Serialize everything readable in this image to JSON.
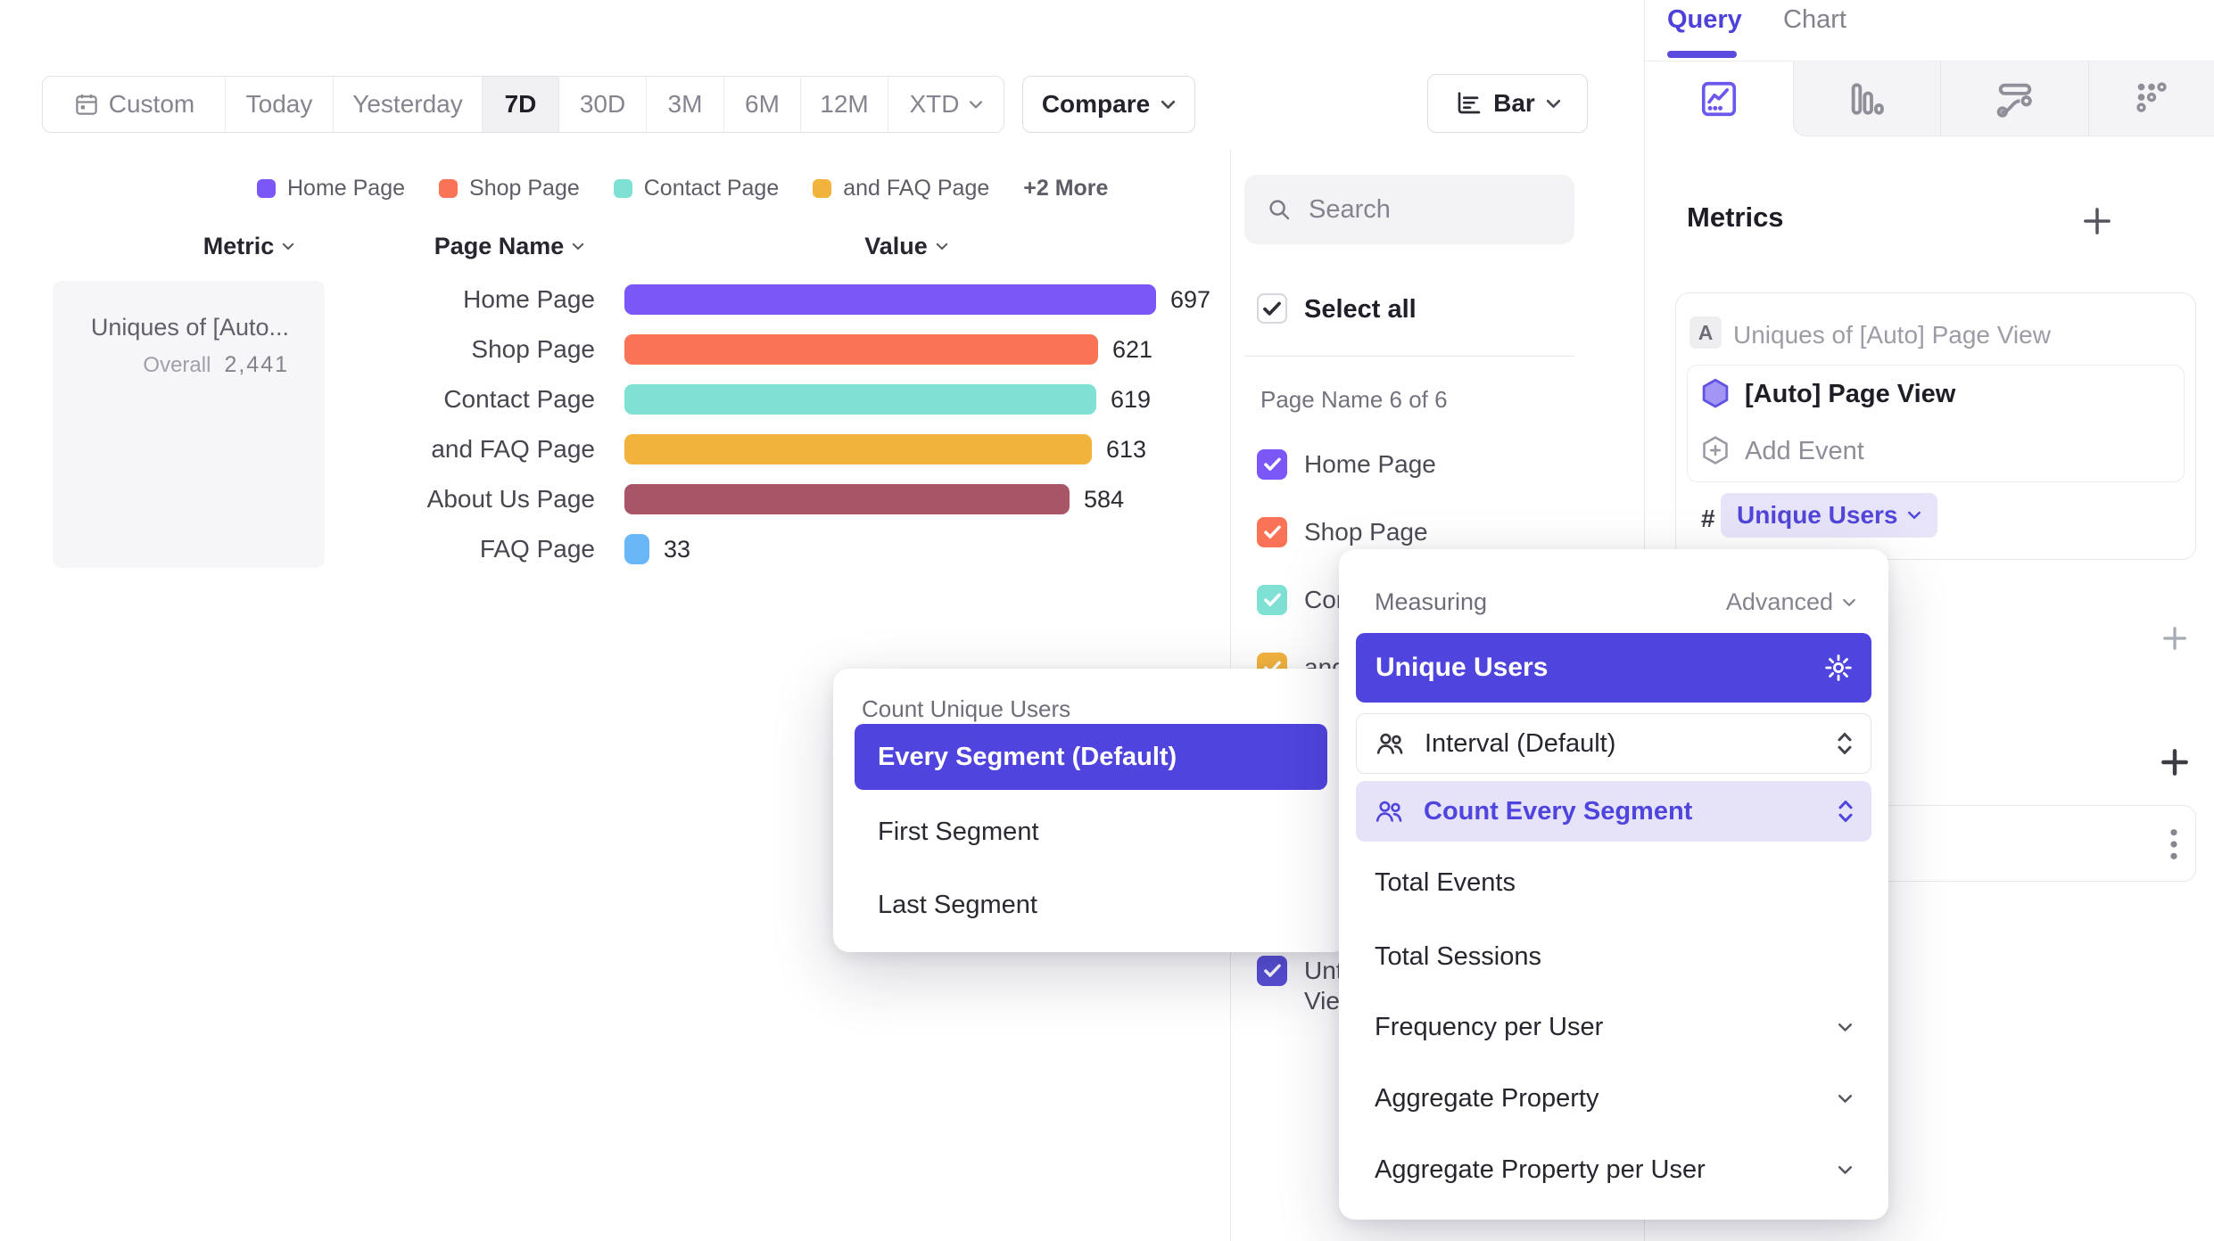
{
  "colors": {
    "accent": "#4f44dd",
    "accent_soft": "#e7e4fa",
    "tab_purple": "#4d41da",
    "bar_purple": "#7b57f7",
    "bar_coral": "#fb7357",
    "bar_teal": "#7fe0d4",
    "bar_yellow": "#f2b33d",
    "bar_maroon": "#a85568",
    "bar_blue": "#69b7f7",
    "indigo_check": "#574fd8"
  },
  "toolbar": {
    "date_ranges": [
      {
        "label": "Custom"
      },
      {
        "label": "Today"
      },
      {
        "label": "Yesterday"
      },
      {
        "label": "7D"
      },
      {
        "label": "30D"
      },
      {
        "label": "3M"
      },
      {
        "label": "6M"
      },
      {
        "label": "12M"
      },
      {
        "label": "XTD"
      }
    ],
    "active_range": "7D",
    "compare_label": "Compare",
    "chart_type_label": "Bar"
  },
  "legend": {
    "items": [
      {
        "label": "Home Page",
        "color": "#7b57f7"
      },
      {
        "label": "Shop Page",
        "color": "#fb7357"
      },
      {
        "label": "Contact Page",
        "color": "#7fe0d4"
      },
      {
        "label": "and FAQ Page",
        "color": "#f2b33d"
      }
    ],
    "more_label": "+2 More"
  },
  "table": {
    "headers": {
      "metric": "Metric",
      "page_name": "Page Name",
      "value": "Value"
    },
    "metric_cell": {
      "title": "Uniques of [Auto...",
      "overall_label": "Overall",
      "overall_value": "2,441"
    },
    "rows": [
      {
        "label": "Home Page",
        "value": 697,
        "color": "#7b57f7"
      },
      {
        "label": "Shop Page",
        "value": 621,
        "color": "#fb7357"
      },
      {
        "label": "Contact Page",
        "value": 619,
        "color": "#7fe0d4"
      },
      {
        "label": "and FAQ Page",
        "value": 613,
        "color": "#f2b33d"
      },
      {
        "label": "About Us Page",
        "value": 584,
        "color": "#a85568"
      },
      {
        "label": "FAQ Page",
        "value": 33,
        "color": "#69b7f7"
      }
    ]
  },
  "chart_data": {
    "type": "bar",
    "orientation": "horizontal",
    "title": "Uniques of [Auto] Page View",
    "overall_total": "2,441",
    "categories": [
      "Home Page",
      "Shop Page",
      "Contact Page",
      "and FAQ Page",
      "About Us Page",
      "FAQ Page"
    ],
    "values": [
      697,
      621,
      619,
      613,
      584,
      33
    ],
    "colors": [
      "#7b57f7",
      "#fb7357",
      "#7fe0d4",
      "#f2b33d",
      "#a85568",
      "#69b7f7"
    ],
    "xlim": [
      0,
      697
    ],
    "value_labels": true,
    "grid": false,
    "legend_position": "top"
  },
  "segment_panel": {
    "search_placeholder": "Search",
    "select_all_label": "Select all",
    "group_label": "Page Name 6 of 6",
    "items": [
      {
        "label": "Home Page",
        "color": "#7b57f7",
        "checked": true
      },
      {
        "label": "Shop Page",
        "color": "#fb7357",
        "checked": true
      },
      {
        "label": "Contact Page",
        "color": "#7fe0d4",
        "checked": true
      },
      {
        "label": "and FAQ Page",
        "color": "#f2b33d",
        "checked": true
      }
    ],
    "partial_item": {
      "label_line1": "Unt",
      "label_line2": "Vie",
      "color": "#574fd8",
      "checked": true
    }
  },
  "sidebar": {
    "tabs": [
      {
        "label": "Query",
        "active": true
      },
      {
        "label": "Chart",
        "active": false
      }
    ],
    "chart_type_tabs": [
      "line-chart",
      "bar-chart",
      "flow-chart",
      "scatter-chart"
    ],
    "active_chart_type": "line-chart",
    "metrics": {
      "heading": "Metrics",
      "card": {
        "badge": "A",
        "title": "Uniques of [Auto] Page View",
        "event": {
          "name": "[Auto] Page View"
        },
        "add_event_label": "Add Event",
        "measure_prefix": "#",
        "measure_chip": "Unique Users"
      }
    }
  },
  "popups": {
    "count_unique_users": {
      "title": "Count Unique Users",
      "options": [
        {
          "label": "Every Segment (Default)",
          "selected": true
        },
        {
          "label": "First Segment",
          "selected": false
        },
        {
          "label": "Last Segment",
          "selected": false
        }
      ]
    },
    "measuring": {
      "title": "Measuring",
      "mode_label": "Advanced",
      "selected_option": "Unique Users",
      "controls": [
        {
          "label": "Interval (Default)",
          "style": "outlined"
        },
        {
          "label": "Count Every Segment",
          "style": "highlighted"
        }
      ],
      "options": [
        {
          "label": "Total Events",
          "chevron": false
        },
        {
          "label": "Total Sessions",
          "chevron": false
        },
        {
          "label": "Frequency per User",
          "chevron": true
        },
        {
          "label": "Aggregate Property",
          "chevron": true
        },
        {
          "label": "Aggregate Property per User",
          "chevron": true
        }
      ]
    }
  }
}
